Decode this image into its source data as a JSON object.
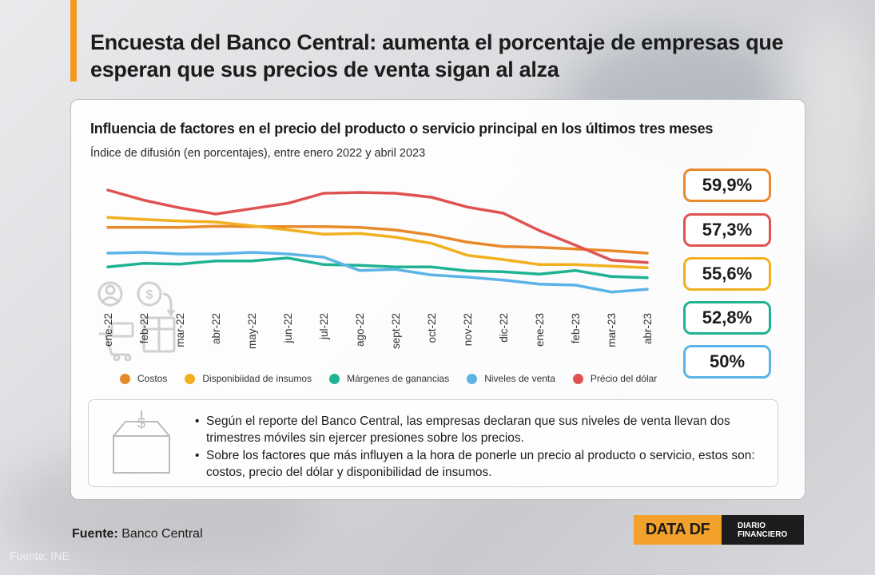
{
  "headline": "Encuesta del Banco Central: aumenta el porcentaje de empresas que esperan que sus precios de venta sigan al alza",
  "chart_data": {
    "type": "line",
    "title": "Influencia de factores en el precio del producto o servicio principal en los últimos tres meses",
    "subtitle": "Índice de difusión (en porcentajes), entre enero 2022 y abril 2023",
    "x": [
      "ene-22",
      "feb-22",
      "mar-22",
      "abr-22",
      "may-22",
      "jun-22",
      "jul-22",
      "ago-22",
      "sept-22",
      "oct-22",
      "nov-22",
      "dic-22",
      "ene-23",
      "feb-23",
      "mar-23",
      "abr-23"
    ],
    "legend_position": "bottom",
    "series": [
      {
        "name": "Costos",
        "color": "#e8892a",
        "values": [
          68.6,
          68.6,
          68.6,
          69.0,
          68.9,
          68.9,
          68.9,
          68.6,
          67.6,
          65.7,
          63.0,
          61.4,
          61.1,
          60.5,
          59.8,
          58.9
        ]
      },
      {
        "name": "Disponibiidad de insumos",
        "color": "#f2b01e",
        "values": [
          72.3,
          71.6,
          71.0,
          70.6,
          69.2,
          67.7,
          66.0,
          66.3,
          64.9,
          62.6,
          58.1,
          56.5,
          54.6,
          54.6,
          54.0,
          53.4
        ]
      },
      {
        "name": "Márgenes de ganancias",
        "color": "#1fb394",
        "values": [
          53.7,
          55.1,
          54.8,
          56.0,
          56.0,
          57.1,
          54.6,
          54.3,
          53.7,
          53.7,
          52.2,
          51.9,
          51.0,
          52.4,
          50.1,
          49.7
        ]
      },
      {
        "name": "Niveles de venta",
        "color": "#5cb3e6",
        "values": [
          58.9,
          59.2,
          58.6,
          58.6,
          59.2,
          58.6,
          57.4,
          52.4,
          52.8,
          50.7,
          49.9,
          48.8,
          47.3,
          46.9,
          44.3,
          45.3
        ]
      },
      {
        "name": "Précio del dólar",
        "color": "#e05252",
        "values": [
          82.6,
          78.8,
          75.9,
          73.6,
          75.6,
          77.6,
          81.4,
          81.7,
          81.4,
          79.9,
          76.2,
          73.9,
          67.4,
          61.9,
          56.3,
          55.4
        ]
      }
    ]
  },
  "badges": [
    {
      "label": "59,9%",
      "color": "#e8892a"
    },
    {
      "label": "57,3%",
      "color": "#e05252"
    },
    {
      "label": "55,6%",
      "color": "#f2b01e"
    },
    {
      "label": "52,8%",
      "color": "#1fb394"
    },
    {
      "label": "50%",
      "color": "#5cb3e6"
    }
  ],
  "notes": [
    "Según el reporte del Banco Central, las empresas declaran que sus niveles de venta llevan dos trimestres móviles sin ejercer presiones sobre los precios.",
    "Sobre los factores que más influyen a la hora de ponerle un precio al producto o servicio, estos son: costos, precio del dólar y disponibilidad de insumos."
  ],
  "icons": [
    "people-money-cart-icon",
    "box-dollar-icon"
  ],
  "source": {
    "label": "Fuente:",
    "value": "Banco Central"
  },
  "watermark": "Fuente: INE",
  "logo": {
    "left": "DATA DF",
    "right_line1": "DIARIO",
    "right_line2": "FINANCIERO"
  }
}
